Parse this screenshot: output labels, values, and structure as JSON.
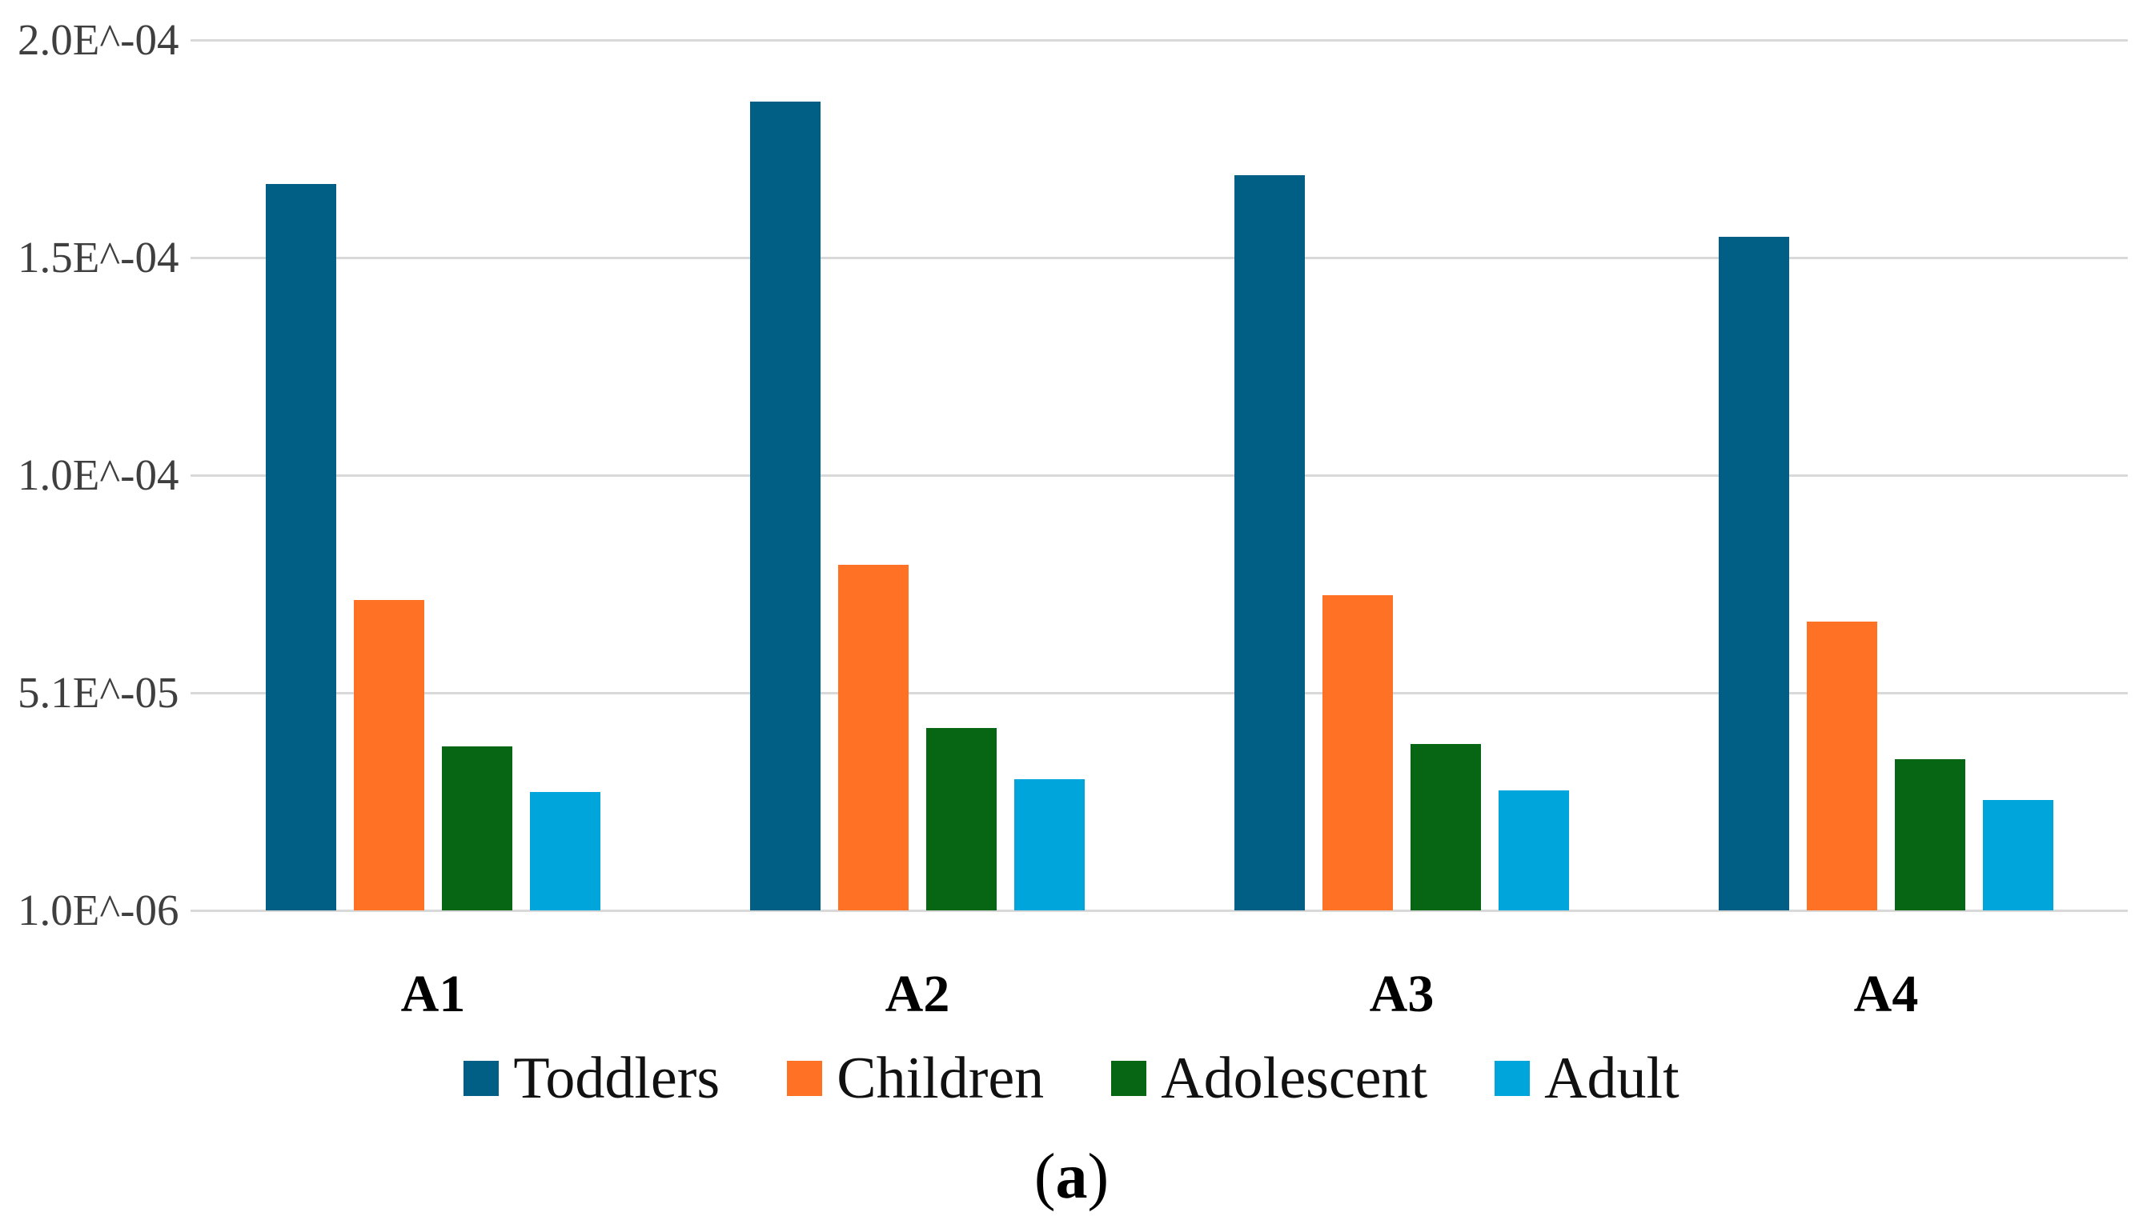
{
  "figure": {
    "background": "#ffffff",
    "caption": {
      "open": "(",
      "letter": "a",
      "close": ")"
    }
  },
  "chart_data": {
    "type": "bar",
    "title": "",
    "xlabel": "",
    "ylabel": "",
    "categories": [
      "A1",
      "A2",
      "A3",
      "A4"
    ],
    "series": [
      {
        "name": "Toddlers",
        "color": "#015E84",
        "values": [
          0.000167,
          0.000186,
          0.000169,
          0.000155
        ]
      },
      {
        "name": "Children",
        "color": "#FF7124",
        "values": [
          7.2e-05,
          8e-05,
          7.3e-05,
          6.7e-05
        ]
      },
      {
        "name": "Adolescent",
        "color": "#076613",
        "values": [
          3.85e-05,
          4.27e-05,
          3.9e-05,
          3.56e-05
        ]
      },
      {
        "name": "Adult",
        "color": "#00A5DC",
        "values": [
          2.81e-05,
          3.1e-05,
          2.84e-05,
          2.62e-05
        ]
      }
    ],
    "ylim": [
      1e-06,
      0.0002
    ],
    "yticks": [
      {
        "label": "2.0E^-04",
        "value": 0.0002
      },
      {
        "label": "1.5E^-04",
        "value": 0.00015
      },
      {
        "label": "1.0E^-04",
        "value": 0.0001
      },
      {
        "label": "5.1E^-05",
        "value": 5.1e-05
      },
      {
        "label": "1.0E^-06",
        "value": 1e-06
      }
    ],
    "grid": true,
    "gridline_color": "#D9D9D9",
    "legend_position": "bottom",
    "legend_labels": [
      "Toddlers",
      "Children",
      "Adolescent",
      "Adult"
    ]
  }
}
